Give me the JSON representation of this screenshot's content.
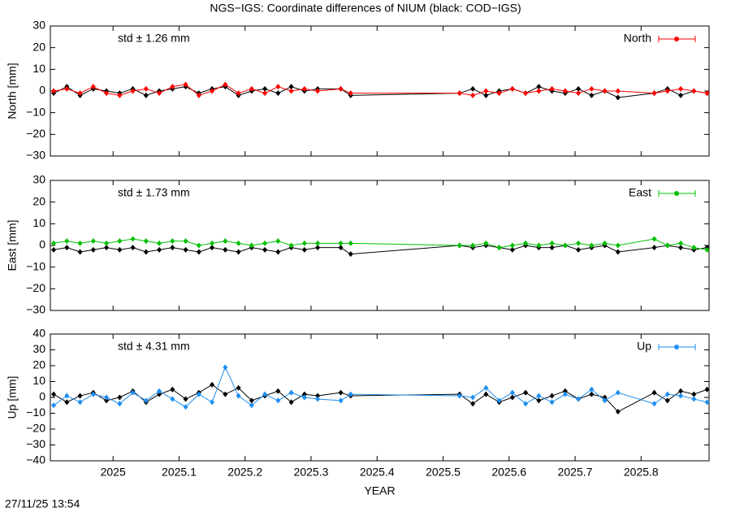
{
  "title": "NGS−IGS: Coordinate differences of NIUM (black: COD−IGS)",
  "timestamp": "27/11/25 13:54",
  "chart_data": [
    {
      "type": "line",
      "ylabel": "North [mm]",
      "annotation": "std ± 1.26 mm",
      "x": [
        2024.91,
        2024.93,
        2024.95,
        2024.97,
        2024.99,
        2025.01,
        2025.03,
        2025.05,
        2025.07,
        2025.09,
        2025.11,
        2025.13,
        2025.15,
        2025.17,
        2025.19,
        2025.21,
        2025.23,
        2025.25,
        2025.27,
        2025.29,
        2025.31,
        2025.345,
        2025.36,
        2025.525,
        2025.545,
        2025.565,
        2025.585,
        2025.605,
        2025.625,
        2025.645,
        2025.665,
        2025.685,
        2025.705,
        2025.725,
        2025.745,
        2025.765,
        2025.82,
        2025.84,
        2025.86,
        2025.88,
        2025.9
      ],
      "series": [
        {
          "color": "#000000",
          "values": [
            -1,
            2,
            -2,
            1,
            0,
            -1,
            1,
            -2,
            0,
            1,
            2,
            -1,
            1,
            2,
            -2,
            0,
            1,
            -1,
            2,
            0,
            1,
            1,
            -2,
            -1,
            1,
            -2,
            0,
            1,
            -1,
            2,
            0,
            -1,
            1,
            -2,
            0,
            -3,
            -1,
            1,
            -2,
            0,
            -1
          ]
        },
        {
          "name": "North",
          "color": "#ff0000",
          "values": [
            0,
            1,
            -1,
            2,
            -1,
            -2,
            0,
            1,
            -1,
            2,
            3,
            -2,
            0,
            3,
            -1,
            1,
            -1,
            2,
            0,
            1,
            0,
            1,
            -1,
            -1,
            -2,
            0,
            -1,
            1,
            -1,
            0,
            1,
            0,
            -1,
            1,
            0,
            0,
            -1,
            0,
            1,
            0,
            -1
          ]
        }
      ],
      "xlim": [
        2024.905,
        2025.903
      ],
      "ylim": [
        -30,
        30
      ],
      "xticks": [
        2025,
        2025.1,
        2025.2,
        2025.3,
        2025.4,
        2025.5,
        2025.6,
        2025.7,
        2025.8
      ],
      "yticks": [
        {
          "value": -30,
          "label": "−30"
        },
        {
          "value": -20,
          "label": "−20"
        },
        {
          "value": -10,
          "label": "−10"
        },
        0,
        10,
        20,
        30
      ]
    },
    {
      "type": "line",
      "ylabel": "East [mm]",
      "annotation": "std ± 1.73 mm",
      "x": [
        2024.91,
        2024.93,
        2024.95,
        2024.97,
        2024.99,
        2025.01,
        2025.03,
        2025.05,
        2025.07,
        2025.09,
        2025.11,
        2025.13,
        2025.15,
        2025.17,
        2025.19,
        2025.21,
        2025.23,
        2025.25,
        2025.27,
        2025.29,
        2025.31,
        2025.345,
        2025.36,
        2025.525,
        2025.545,
        2025.565,
        2025.585,
        2025.605,
        2025.625,
        2025.645,
        2025.665,
        2025.685,
        2025.705,
        2025.725,
        2025.745,
        2025.765,
        2025.82,
        2025.84,
        2025.86,
        2025.88,
        2025.9
      ],
      "series": [
        {
          "color": "#000000",
          "values": [
            -2,
            -1,
            -3,
            -2,
            -1,
            -2,
            -1,
            -3,
            -2,
            -1,
            -2,
            -3,
            -1,
            -2,
            -3,
            -1,
            -2,
            -3,
            -1,
            -2,
            -1,
            -1,
            -4,
            0,
            -1,
            0,
            -1,
            -2,
            0,
            -1,
            -1,
            0,
            -2,
            -1,
            0,
            -3,
            -1,
            0,
            -1,
            -2,
            -1
          ]
        },
        {
          "name": "East",
          "color": "#00c000",
          "values": [
            1,
            2,
            1,
            2,
            1,
            2,
            3,
            2,
            1,
            2,
            2,
            0,
            1,
            2,
            1,
            0,
            1,
            2,
            0,
            1,
            1,
            1,
            1,
            0,
            0,
            1,
            -1,
            0,
            1,
            0,
            1,
            0,
            1,
            0,
            1,
            0,
            3,
            0,
            1,
            -1,
            -2
          ]
        }
      ],
      "xlim": [
        2024.905,
        2025.903
      ],
      "ylim": [
        -30,
        30
      ],
      "xticks": [
        2025,
        2025.1,
        2025.2,
        2025.3,
        2025.4,
        2025.5,
        2025.6,
        2025.7,
        2025.8
      ],
      "yticks": [
        {
          "value": -30,
          "label": "−30"
        },
        {
          "value": -20,
          "label": "−20"
        },
        {
          "value": -10,
          "label": "−10"
        },
        0,
        10,
        20,
        30
      ]
    },
    {
      "type": "line",
      "ylabel": "Up [mm]",
      "xlabel": "YEAR",
      "annotation": "std ± 4.31 mm",
      "x": [
        2024.91,
        2024.93,
        2024.95,
        2024.97,
        2024.99,
        2025.01,
        2025.03,
        2025.05,
        2025.07,
        2025.09,
        2025.11,
        2025.13,
        2025.15,
        2025.17,
        2025.19,
        2025.21,
        2025.23,
        2025.25,
        2025.27,
        2025.29,
        2025.31,
        2025.345,
        2025.36,
        2025.525,
        2025.545,
        2025.565,
        2025.585,
        2025.605,
        2025.625,
        2025.645,
        2025.665,
        2025.685,
        2025.705,
        2025.725,
        2025.745,
        2025.765,
        2025.82,
        2025.84,
        2025.86,
        2025.88,
        2025.9
      ],
      "series": [
        {
          "color": "#000000",
          "values": [
            2,
            -3,
            1,
            3,
            -2,
            0,
            4,
            -3,
            2,
            5,
            -1,
            3,
            8,
            2,
            6,
            -2,
            1,
            4,
            -3,
            2,
            1,
            3,
            1,
            2,
            -4,
            2,
            -3,
            0,
            3,
            -2,
            1,
            4,
            -1,
            2,
            0,
            -9,
            3,
            -2,
            4,
            2,
            5
          ]
        },
        {
          "name": "Up",
          "color": "#1e8ff0",
          "values": [
            -5,
            1,
            -3,
            2,
            0,
            -4,
            3,
            -2,
            4,
            -1,
            -6,
            2,
            -3,
            19,
            1,
            -5,
            2,
            -2,
            3,
            0,
            -1,
            -2,
            2,
            1,
            0,
            6,
            -2,
            3,
            -4,
            1,
            -3,
            2,
            -1,
            5,
            -2,
            3,
            -4,
            2,
            1,
            -1,
            -3
          ]
        }
      ],
      "xlim": [
        2024.905,
        2025.903
      ],
      "ylim": [
        -40,
        40
      ],
      "xticks": [
        2025,
        2025.1,
        2025.2,
        2025.3,
        2025.4,
        2025.5,
        2025.6,
        2025.7,
        2025.8
      ],
      "yticks": [
        {
          "value": -40,
          "label": "−40"
        },
        {
          "value": -30,
          "label": "−30"
        },
        {
          "value": -20,
          "label": "−20"
        },
        {
          "value": -10,
          "label": "−10"
        },
        0,
        10,
        20,
        30,
        40
      ]
    }
  ]
}
